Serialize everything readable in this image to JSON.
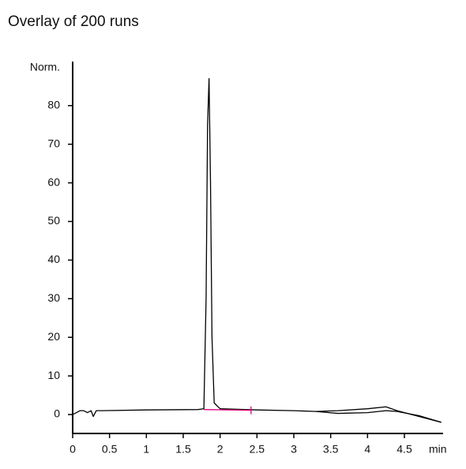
{
  "chart_data": {
    "type": "line",
    "title": "Overlay of 200 runs",
    "ylabel": "Norm.",
    "xlabel": "min",
    "xlim": [
      0,
      5.025
    ],
    "ylim": [
      -4.9,
      91.4
    ],
    "xticks": [
      0,
      0.5,
      1,
      1.5,
      2,
      2.5,
      3,
      3.5,
      4,
      4.5
    ],
    "yticks": [
      0,
      10,
      20,
      30,
      40,
      50,
      60,
      70,
      80
    ],
    "series": [
      {
        "color": "#000000",
        "x": [
          0,
          0.1,
          0.15,
          0.2,
          0.25,
          0.28,
          0.32,
          0.4,
          1.0,
          1.7,
          1.78,
          1.81,
          1.83,
          1.85,
          1.87,
          1.89,
          1.92,
          2.0,
          2.5,
          3.0,
          3.3,
          3.6,
          4.0,
          4.25,
          4.4,
          4.7,
          5.0
        ],
        "values": [
          0,
          1,
          1,
          0.5,
          1,
          -0.5,
          1,
          1,
          1.2,
          1.3,
          1.5,
          30,
          75,
          87,
          60,
          20,
          3,
          1.5,
          1.2,
          1.0,
          0.8,
          1.0,
          1.5,
          2.0,
          1.0,
          -0.5,
          -2
        ]
      },
      {
        "color": "#000000",
        "x": [
          3.3,
          3.6,
          4.0,
          4.25,
          4.4,
          4.7,
          5.0
        ],
        "values": [
          0.8,
          0.3,
          0.5,
          1.0,
          0.8,
          -0.3,
          -2
        ]
      }
    ],
    "baseline": {
      "color": "#e0007a",
      "x": [
        1.78,
        2.42
      ],
      "values": [
        1.3,
        1.1
      ]
    }
  }
}
